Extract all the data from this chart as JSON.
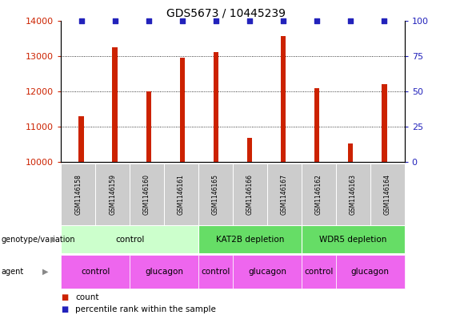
{
  "title": "GDS5673 / 10445239",
  "samples": [
    "GSM1146158",
    "GSM1146159",
    "GSM1146160",
    "GSM1146161",
    "GSM1146165",
    "GSM1146166",
    "GSM1146167",
    "GSM1146162",
    "GSM1146163",
    "GSM1146164"
  ],
  "counts": [
    11300,
    13250,
    12000,
    12950,
    13100,
    10680,
    13560,
    12100,
    10520,
    12200
  ],
  "percentiles": [
    100,
    100,
    100,
    100,
    100,
    100,
    100,
    100,
    100,
    100
  ],
  "ylim_left": [
    10000,
    14000
  ],
  "ylim_right": [
    0,
    100
  ],
  "yticks_left": [
    10000,
    11000,
    12000,
    13000,
    14000
  ],
  "yticks_right": [
    0,
    25,
    50,
    75,
    100
  ],
  "bar_color": "#cc2200",
  "dot_color": "#2222bb",
  "background_color": "#ffffff",
  "genotype_groups": [
    {
      "label": "control",
      "start": 0,
      "end": 4,
      "color": "#ccffcc"
    },
    {
      "label": "KAT2B depletion",
      "start": 4,
      "end": 7,
      "color": "#66dd66"
    },
    {
      "label": "WDR5 depletion",
      "start": 7,
      "end": 10,
      "color": "#66dd66"
    }
  ],
  "agent_groups": [
    {
      "label": "control",
      "start": 0,
      "end": 2,
      "color": "#ee66ee"
    },
    {
      "label": "glucagon",
      "start": 2,
      "end": 4,
      "color": "#ee66ee"
    },
    {
      "label": "control",
      "start": 4,
      "end": 5,
      "color": "#ee66ee"
    },
    {
      "label": "glucagon",
      "start": 5,
      "end": 7,
      "color": "#ee66ee"
    },
    {
      "label": "control",
      "start": 7,
      "end": 8,
      "color": "#ee66ee"
    },
    {
      "label": "glucagon",
      "start": 8,
      "end": 10,
      "color": "#ee66ee"
    }
  ],
  "legend_count_color": "#cc2200",
  "legend_dot_color": "#2222bb",
  "genotype_label": "genotype/variation",
  "agent_label": "agent",
  "legend_count_text": "count",
  "legend_percentile_text": "percentile rank within the sample",
  "sample_box_color": "#cccccc",
  "bar_width": 0.15
}
